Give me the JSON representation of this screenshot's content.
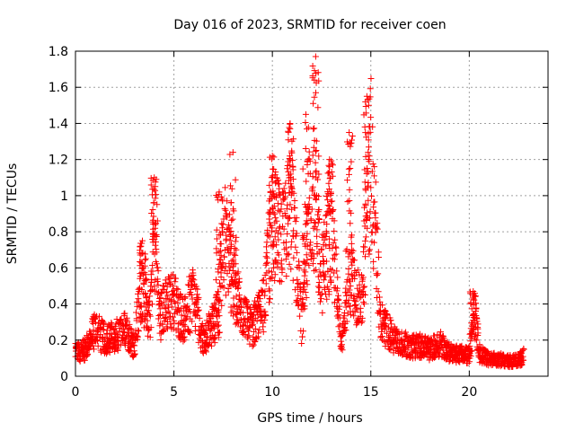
{
  "chart_data": {
    "type": "scatter",
    "title": "Day 016 of 2023, SRMTID for receiver coen",
    "xlabel": "GPS time / hours",
    "ylabel": "SRMTID / TECUs",
    "xlim": [
      0,
      24
    ],
    "ylim": [
      0,
      1.8
    ],
    "x_ticks": [
      0,
      5,
      10,
      15,
      20
    ],
    "x_tick_labels": [
      "0",
      "5",
      "10",
      "15",
      "20"
    ],
    "y_ticks": [
      0,
      0.2,
      0.4,
      0.6,
      0.8,
      1,
      1.2,
      1.4,
      1.6,
      1.8
    ],
    "y_tick_labels": [
      "0",
      "0.2",
      "0.4",
      "0.6",
      "0.8",
      "1",
      "1.2",
      "1.4",
      "1.6",
      "1.8"
    ],
    "grid": true,
    "marker": "plus",
    "marker_color": "#ff0000",
    "series": [
      {
        "name": "SRMTID",
        "envelope_x": [
          0,
          0.5,
          1.0,
          1.5,
          2.0,
          2.5,
          3.0,
          3.3,
          3.5,
          3.8,
          4.0,
          4.3,
          4.5,
          5.0,
          5.5,
          6.0,
          6.5,
          7.0,
          7.3,
          7.5,
          8.0,
          8.5,
          9.0,
          9.5,
          10.0,
          10.5,
          11.0,
          11.5,
          12.0,
          12.5,
          13.0,
          13.5,
          14.0,
          14.5,
          15.0,
          15.5,
          16.0,
          16.5,
          17.0,
          17.5,
          18.0,
          18.5,
          19.0,
          19.5,
          20.0,
          20.3,
          20.5,
          21.0,
          21.5,
          22.0,
          22.5,
          22.8
        ],
        "envelope_y": [
          0.14,
          0.16,
          0.28,
          0.22,
          0.24,
          0.27,
          0.18,
          0.55,
          0.45,
          0.36,
          0.85,
          0.36,
          0.42,
          0.45,
          0.32,
          0.5,
          0.2,
          0.32,
          0.38,
          0.9,
          0.55,
          0.38,
          0.3,
          0.4,
          0.9,
          0.8,
          1.0,
          0.3,
          1.2,
          0.6,
          0.9,
          0.2,
          0.6,
          0.4,
          1.3,
          0.32,
          0.25,
          0.2,
          0.18,
          0.18,
          0.16,
          0.2,
          0.14,
          0.13,
          0.13,
          0.38,
          0.14,
          0.1,
          0.1,
          0.09,
          0.1,
          0.12
        ],
        "peaks": [
          {
            "x": 3.4,
            "y": 0.75
          },
          {
            "x": 4.0,
            "y": 1.1
          },
          {
            "x": 7.3,
            "y": 1.02
          },
          {
            "x": 8.0,
            "y": 1.24
          },
          {
            "x": 10.0,
            "y": 1.22
          },
          {
            "x": 10.9,
            "y": 1.4
          },
          {
            "x": 11.7,
            "y": 1.45
          },
          {
            "x": 12.2,
            "y": 1.77
          },
          {
            "x": 12.9,
            "y": 1.2
          },
          {
            "x": 13.9,
            "y": 1.35
          },
          {
            "x": 14.8,
            "y": 1.55
          },
          {
            "x": 20.2,
            "y": 0.47
          }
        ]
      }
    ]
  }
}
